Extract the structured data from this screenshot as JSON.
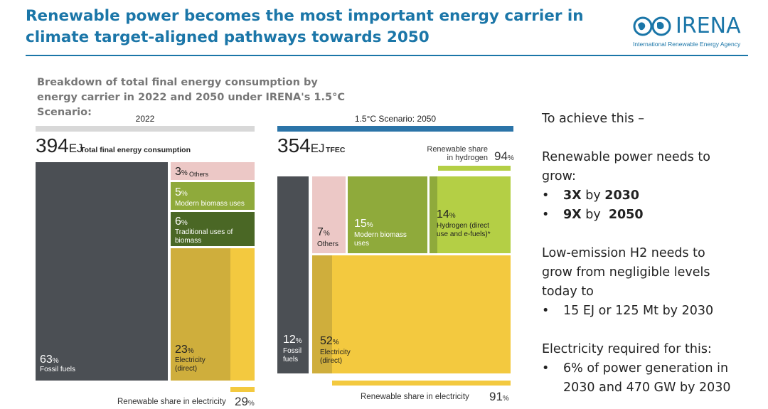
{
  "header": {
    "title": "Renewable power becomes the most important energy carrier in climate target-aligned pathways towards 2050",
    "logo_word": "IRENA",
    "logo_sub": "International Renewable Energy Agency"
  },
  "colors": {
    "title_blue": "#1b76a8",
    "fossil": "#4b4f54",
    "others": "#ecc8c6",
    "modern_biomass": "#8faa3b",
    "traditional_biomass": "#4a6725",
    "hydrogen": "#b4cf45",
    "electricity": "#f3c93f",
    "electricity_renewable": "#cfae3c",
    "bar_grey": "#d8d8d8",
    "bar_blue": "#2b74a8"
  },
  "chart_data": {
    "type": "treemap",
    "subtitle": "Breakdown of total final energy consumption by energy carrier in 2022 and 2050 under IRENA's 1.5°C Scenario:",
    "panels": [
      {
        "name": "2022",
        "total_value": "394",
        "total_unit": "EJ",
        "total_label": "Total final energy consumption",
        "segments": [
          {
            "key": "fossil",
            "pct": 63,
            "pct_text": "63",
            "label": "Fossil fuels"
          },
          {
            "key": "others",
            "pct": 3,
            "pct_text": "3",
            "label": "Others"
          },
          {
            "key": "modern_biomass",
            "pct": 5,
            "pct_text": "5",
            "label": "Modern biomass uses"
          },
          {
            "key": "traditional_biomass",
            "pct": 6,
            "pct_text": "6",
            "label": "Traditional uses of biomass"
          },
          {
            "key": "electricity",
            "pct": 23,
            "pct_text": "23",
            "label": "Electricity (direct)",
            "renewable_share": 29
          }
        ],
        "renewable_share_electricity": {
          "label": "Renewable share in electricity",
          "value": "29"
        }
      },
      {
        "name": "1.5°C Scenario: 2050",
        "total_value": "354",
        "total_unit": "EJ",
        "total_label": "TFEC",
        "segments": [
          {
            "key": "fossil",
            "pct": 12,
            "pct_text": "12",
            "label": "Fossil fuels"
          },
          {
            "key": "others",
            "pct": 7,
            "pct_text": "7",
            "label": "Others"
          },
          {
            "key": "modern_biomass",
            "pct": 15,
            "pct_text": "15",
            "label": "Modern biomass uses"
          },
          {
            "key": "hydrogen",
            "pct": 14,
            "pct_text": "14",
            "label": "Hydrogen (direct use and e-fuels)*",
            "renewable_share": 94
          },
          {
            "key": "electricity",
            "pct": 52,
            "pct_text": "52",
            "label": "Electricity (direct)",
            "renewable_share": 91
          }
        ],
        "renewable_share_hydrogen": {
          "label_line1": "Renewable share",
          "label_line2": "in hydrogen",
          "value": "94"
        },
        "renewable_share_electricity": {
          "label": "Renewable share in electricity",
          "value": "91"
        }
      }
    ],
    "pct_suffix": "%"
  },
  "right_panel": {
    "intro": "To achieve this –",
    "power_line1": "Renewable power needs to",
    "power_line2": "grow:",
    "bullet_char": "•",
    "power_bullets": [
      {
        "bold": "3X",
        "mid": " by ",
        "bold2": "2030"
      },
      {
        "bold": "9X",
        "mid": " by  ",
        "bold2": "2050"
      }
    ],
    "h2_line1": "Low-emission H2 needs to",
    "h2_line2": "grow from negligible levels",
    "h2_line3": "today to",
    "h2_bullet": "15 EJ or 125 Mt by 2030",
    "elec_line1": "Electricity required for this:",
    "elec_bullet_line1": "6% of power generation in",
    "elec_bullet_line2": "2030 and 470 GW by 2030"
  }
}
